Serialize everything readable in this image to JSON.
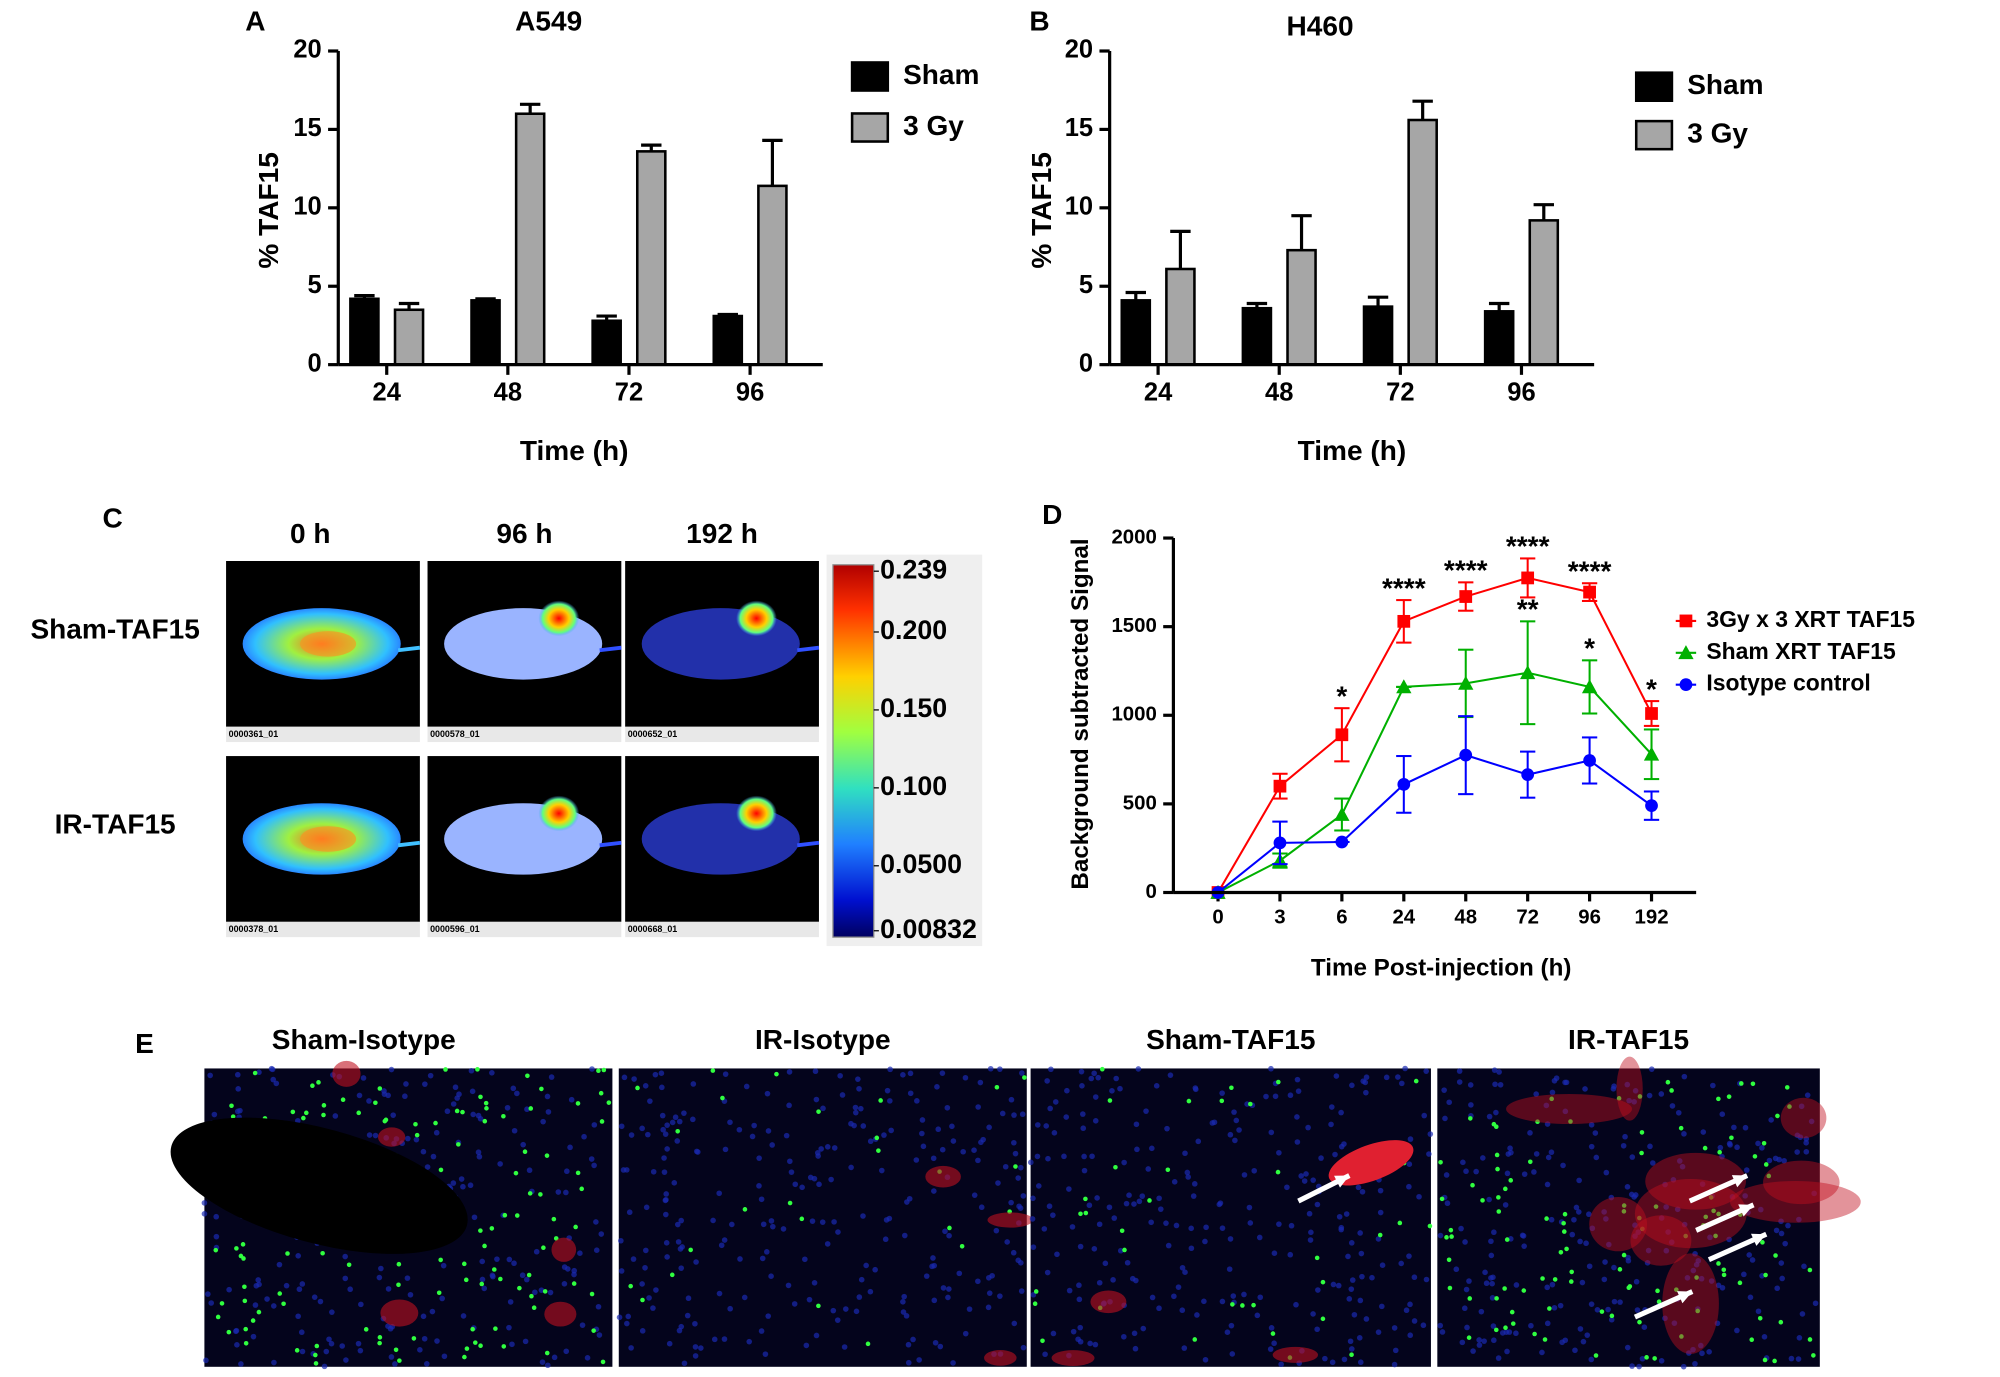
{
  "chart_data": [
    {
      "type": "bar",
      "panel": "A",
      "title": "A549",
      "x_label": "Time (h)",
      "y_label": "% TAF15",
      "categories": [
        "24",
        "48",
        "72",
        "96"
      ],
      "series": [
        {
          "name": "Sham",
          "color": "#000000",
          "values": [
            4.2,
            4.1,
            2.8,
            3.1
          ],
          "errors": [
            0.2,
            0.1,
            0.3,
            0.1
          ]
        },
        {
          "name": "3 Gy",
          "color": "#a6a6a6",
          "values": [
            3.5,
            16,
            13.6,
            11.4
          ],
          "errors": [
            0.4,
            0.6,
            0.4,
            2.9
          ]
        }
      ],
      "ylim": [
        0,
        20
      ],
      "yticks": [
        0,
        5,
        10,
        15,
        20
      ]
    },
    {
      "type": "bar",
      "panel": "B",
      "title": "H460",
      "x_label": "Time (h)",
      "y_label": "% TAF15",
      "categories": [
        "24",
        "48",
        "72",
        "96"
      ],
      "series": [
        {
          "name": "Sham",
          "color": "#000000",
          "values": [
            4.1,
            3.6,
            3.7,
            3.4
          ],
          "errors": [
            0.5,
            0.3,
            0.6,
            0.5
          ]
        },
        {
          "name": "3 Gy",
          "color": "#a6a6a6",
          "values": [
            6.1,
            7.3,
            15.6,
            9.2
          ],
          "errors": [
            2.4,
            2.2,
            1.2,
            1.0
          ]
        }
      ],
      "ylim": [
        0,
        20
      ],
      "yticks": [
        0,
        5,
        10,
        15,
        20
      ]
    },
    {
      "type": "line",
      "panel": "D",
      "x_label": "Time Post-injection (h)",
      "y_label": "Background subtracted Signal",
      "categories": [
        "0",
        "3",
        "6",
        "24",
        "48",
        "72",
        "96",
        "192"
      ],
      "series": [
        {
          "name": "3Gy x 3 XRT TAF15",
          "color": "#ff0000",
          "marker": "square",
          "values": [
            0,
            600,
            890,
            1530,
            1670,
            1775,
            1695,
            1010
          ],
          "errors": [
            0,
            70,
            150,
            120,
            80,
            110,
            50,
            70
          ]
        },
        {
          "name": "Sham XRT TAF15",
          "color": "#00b000",
          "marker": "triangle",
          "values": [
            0,
            180,
            440,
            1160,
            1180,
            1240,
            1160,
            780
          ],
          "errors": [
            0,
            40,
            90,
            0,
            190,
            290,
            150,
            140
          ]
        },
        {
          "name": "Isotype control",
          "color": "#0000ff",
          "marker": "circle",
          "values": [
            0,
            280,
            285,
            610,
            775,
            665,
            745,
            490
          ],
          "errors": [
            0,
            120,
            0,
            160,
            220,
            130,
            130,
            80
          ]
        }
      ],
      "ylim": [
        0,
        2000
      ],
      "yticks": [
        0,
        500,
        1000,
        1500,
        2000
      ],
      "annotations": [
        {
          "text": "*",
          "x": "6"
        },
        {
          "text": "****",
          "x": "24"
        },
        {
          "text": "****",
          "x": "48"
        },
        {
          "text": "****",
          "x": "72"
        },
        {
          "text": "****",
          "x": "96"
        },
        {
          "text": "*",
          "x": "192"
        },
        {
          "text": "**",
          "x": "72",
          "series": "Sham XRT TAF15"
        },
        {
          "text": "*",
          "x": "96",
          "series": "Sham XRT TAF15"
        }
      ]
    }
  ],
  "panel_c": {
    "label": "C",
    "columns": [
      "0 h",
      "96 h",
      "192 h"
    ],
    "rows": [
      "Sham-TAF15",
      "IR-TAF15"
    ],
    "image_ids": [
      [
        "0000361_01",
        "0000578_01",
        "0000652_01"
      ],
      [
        "0000378_01",
        "0000596_01",
        "0000668_01"
      ]
    ],
    "colorbar_ticks": [
      0.239,
      {
        "value": 0.2,
        "label": "0.200"
      },
      {
        "value": 0.15,
        "label": "0.150"
      },
      {
        "value": 0.1,
        "label": "0.100"
      },
      {
        "value": 0.05,
        "label": "0.0500"
      },
      0.00832
    ]
  },
  "panel_e": {
    "label": "E",
    "titles": [
      "Sham-Isotype",
      "IR-Isotype",
      "Sham-TAF15",
      "IR-TAF15"
    ]
  }
}
